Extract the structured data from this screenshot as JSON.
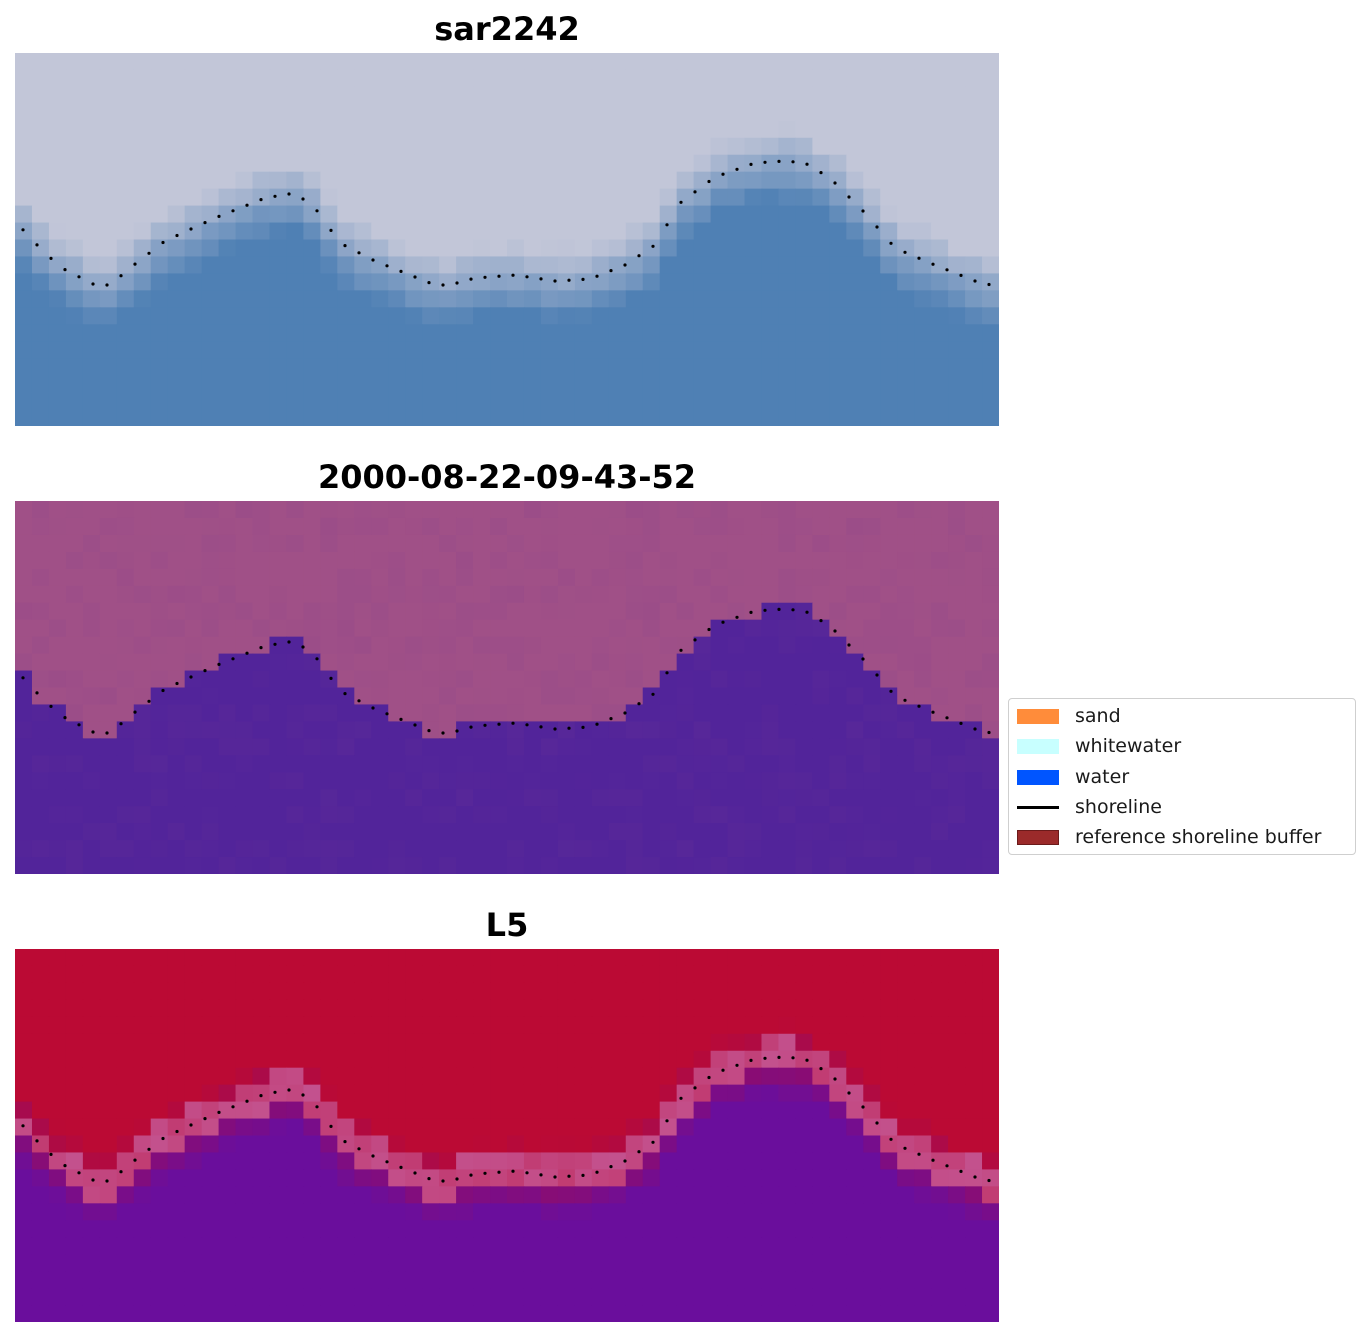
{
  "panels": [
    {
      "title": "sar2242"
    },
    {
      "title": "2000-08-22-09-43-52"
    },
    {
      "title": "L5"
    }
  ],
  "legend": {
    "items": [
      {
        "label": "sand",
        "color": "#ff8c3a",
        "kind": "patch"
      },
      {
        "label": "whitewater",
        "color": "#c8ffff",
        "kind": "patch"
      },
      {
        "label": "water",
        "color": "#0055ff",
        "kind": "patch"
      },
      {
        "label": "shoreline",
        "color": "#000000",
        "kind": "line"
      },
      {
        "label": "reference shoreline buffer",
        "color": "#9b2a2a",
        "kind": "patch"
      }
    ]
  },
  "colors": {
    "rgb_land": "#c2c6d8",
    "rgb_water": "#4f80b4",
    "classified_land": "#a05087",
    "classified_water": "#52249a",
    "index_land": "#bb0a34",
    "index_water": "#6a0e9c",
    "shoreline_points": "#000000"
  }
}
